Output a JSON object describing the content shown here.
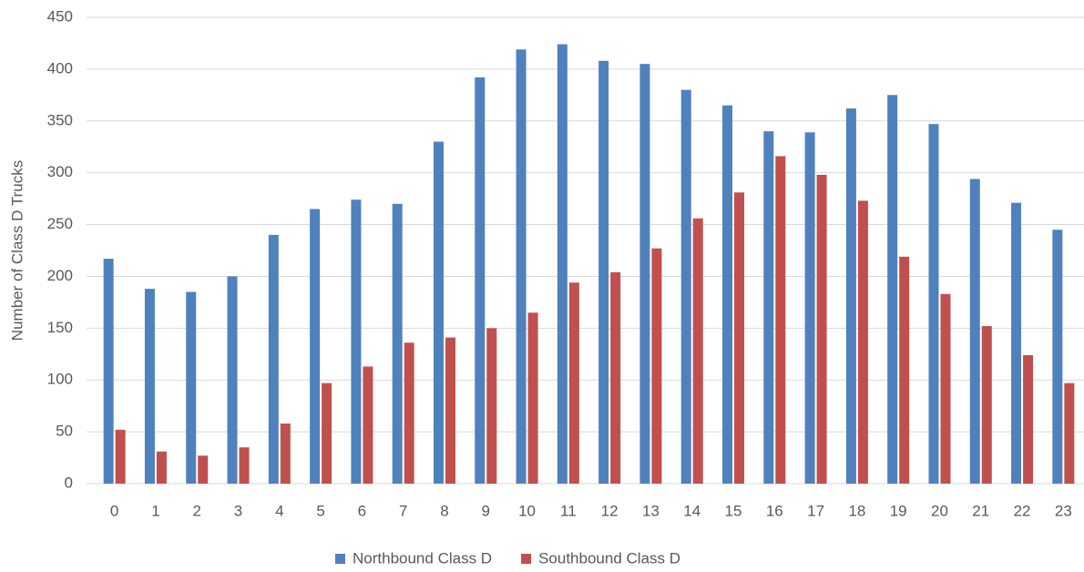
{
  "chart_data": {
    "type": "bar",
    "y_label": "Number of Class D Trucks",
    "categories": [
      0,
      1,
      2,
      3,
      4,
      5,
      6,
      7,
      8,
      9,
      10,
      11,
      12,
      13,
      14,
      15,
      16,
      17,
      18,
      19,
      20,
      21,
      22,
      23
    ],
    "series": [
      {
        "name": "Northbound Class D",
        "color": "#4f81bd",
        "values": [
          217,
          188,
          185,
          200,
          240,
          265,
          274,
          270,
          330,
          392,
          419,
          424,
          408,
          405,
          380,
          365,
          340,
          339,
          362,
          375,
          347,
          294,
          271,
          245
        ]
      },
      {
        "name": "Southbound Class D",
        "color": "#c0504d",
        "values": [
          52,
          31,
          27,
          35,
          58,
          97,
          113,
          136,
          141,
          150,
          165,
          194,
          204,
          227,
          256,
          281,
          316,
          298,
          273,
          219,
          183,
          152,
          124,
          97
        ]
      }
    ],
    "ylim": [
      0,
      450
    ],
    "yticks": [
      0,
      50,
      100,
      150,
      200,
      250,
      300,
      350,
      400,
      450
    ],
    "grid": true,
    "legend": "bottom"
  }
}
